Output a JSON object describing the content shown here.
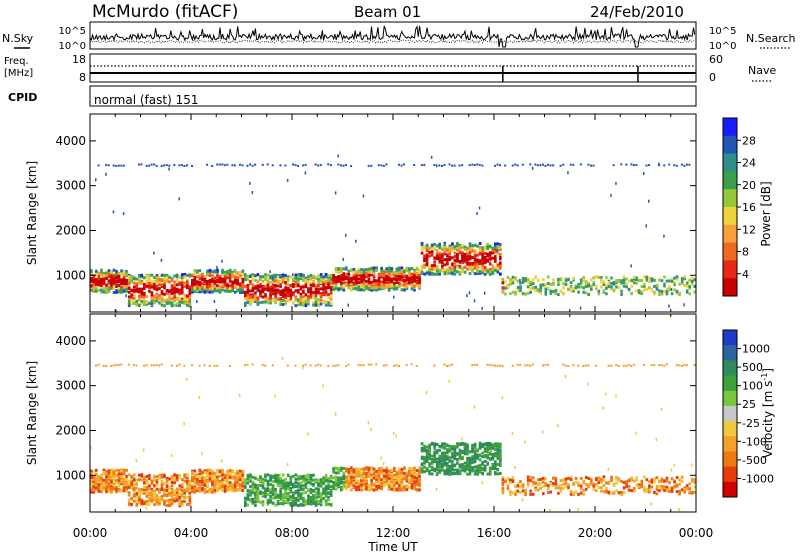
{
  "header": {
    "station": "McMurdo (fitACF)",
    "beam": "Beam 01",
    "date": "24/Feb/2010"
  },
  "noise_panel": {
    "left_label": "N.Sky",
    "right_label": "N.Search",
    "yticks": [
      "10^5",
      "10^0"
    ]
  },
  "freq_panel": {
    "left_label_top": "Freq.",
    "left_label_unit": "[MHz]",
    "right_label": "Nave",
    "left_ticks": [
      "18",
      "8"
    ],
    "right_ticks": [
      "60",
      "0"
    ]
  },
  "cpid_panel": {
    "label": "CPID",
    "mode": "normal (fast) 151"
  },
  "chart_data": [
    {
      "type": "heatmap",
      "name_label": "Power",
      "ylabel": "Slant Range [km]",
      "yticks": [
        1000,
        2000,
        3000,
        4000
      ],
      "ylim": [
        180,
        4600
      ],
      "xlim": [
        0,
        24
      ],
      "colorbar": {
        "label": "Power [dB]",
        "ticks": [
          "4",
          "8",
          "12",
          "16",
          "20",
          "24",
          "28"
        ],
        "colors": [
          "#1a1aff",
          "#2355b4",
          "#2f8f8a",
          "#3aa04a",
          "#96c83c",
          "#f0d23c",
          "#f7a03a",
          "#f06a1e",
          "#e62814",
          "#c80000"
        ]
      }
    },
    {
      "type": "heatmap",
      "name_label": "Velocity",
      "ylabel": "Slant Range [km]",
      "yticks": [
        1000,
        2000,
        3000,
        4000
      ],
      "ylim": [
        180,
        4600
      ],
      "xlim": [
        0,
        24
      ],
      "colorbar": {
        "label": "Velocity [m s",
        "label_sup": "-1",
        "label_end": "]",
        "ticks": [
          "1000",
          "500",
          "100",
          "25",
          "-25",
          "-100",
          "-500",
          "-1000"
        ],
        "colors": [
          "#1e3cc8",
          "#2d64a0",
          "#2f8c5a",
          "#3ca03c",
          "#78c83c",
          "#c8c8c8",
          "#f0c83c",
          "#f5a028",
          "#f07814",
          "#e63c0a",
          "#d20000"
        ]
      }
    }
  ],
  "xaxis": {
    "ticks": [
      "00:00",
      "04:00",
      "08:00",
      "12:00",
      "16:00",
      "20:00",
      "00:00"
    ],
    "label": "Time UT"
  }
}
